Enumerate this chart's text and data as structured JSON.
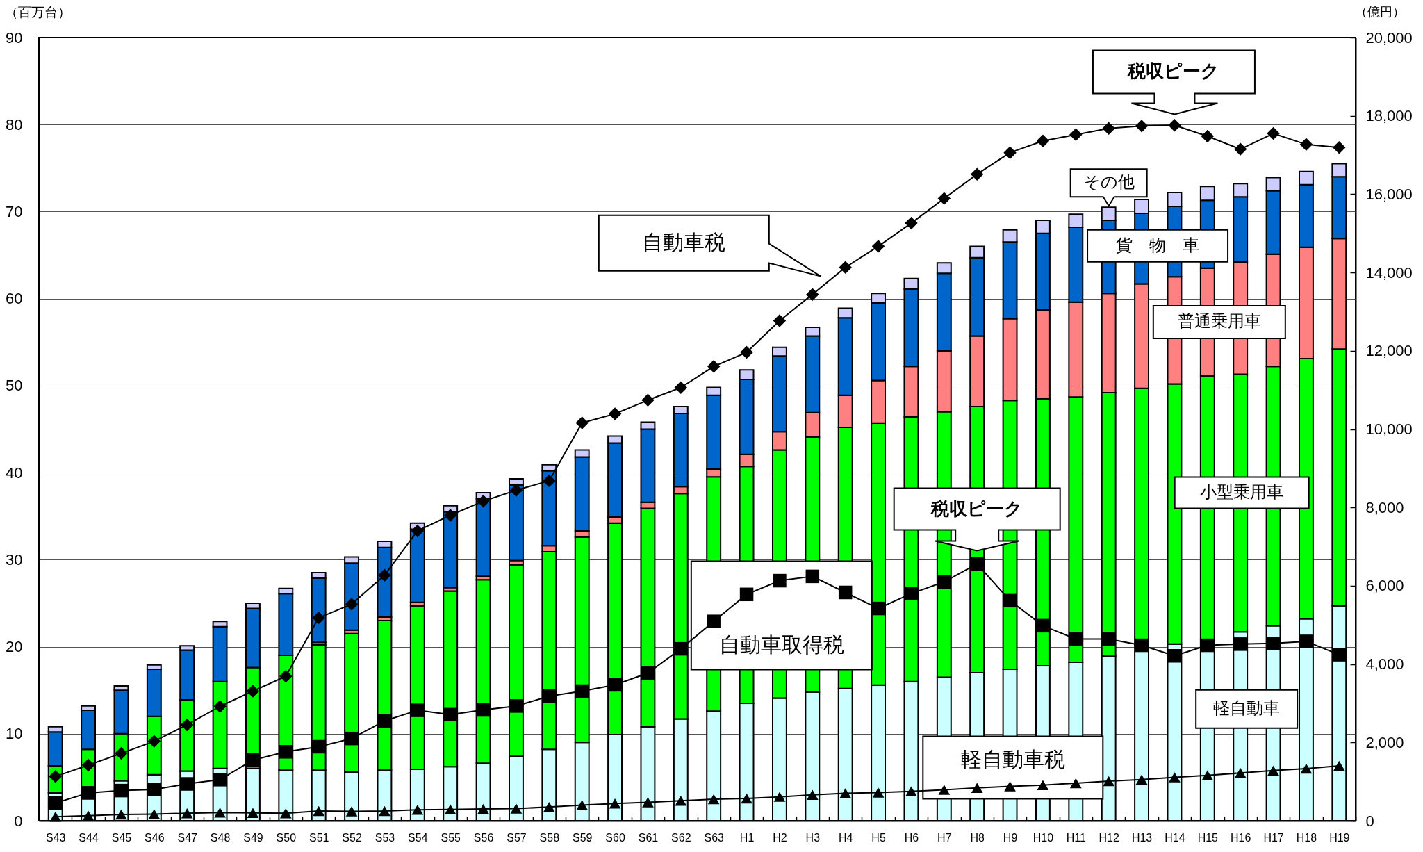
{
  "chart_data": {
    "type": "bar",
    "stacked": true,
    "ylabel": "（百万台）",
    "y2label": "（億円）",
    "legend": false,
    "grid": "y",
    "categories": [
      "S43",
      "S44",
      "S45",
      "S46",
      "S47",
      "S48",
      "S49",
      "S50",
      "S51",
      "S52",
      "S53",
      "S54",
      "S55",
      "S56",
      "S57",
      "S58",
      "S59",
      "S60",
      "S61",
      "S62",
      "S63",
      "H1",
      "H2",
      "H3",
      "H4",
      "H5",
      "H6",
      "H7",
      "H8",
      "H9",
      "H10",
      "H11",
      "H12",
      "H13",
      "H14",
      "H15",
      "H16",
      "H17",
      "H18",
      "H19"
    ],
    "ylim": [
      0,
      90
    ],
    "yticks": [
      0,
      10,
      20,
      30,
      40,
      50,
      60,
      70,
      80,
      90
    ],
    "y2lim": [
      0,
      20000
    ],
    "y2ticks": [
      0,
      {
        "value": 2000,
        "label": "2,000"
      },
      {
        "value": 4000,
        "label": "4,000"
      },
      {
        "value": 6000,
        "label": "6,000"
      },
      {
        "value": 8000,
        "label": "8,000"
      },
      {
        "value": 10000,
        "label": "10,000"
      },
      {
        "value": 12000,
        "label": "12,000"
      },
      {
        "value": 14000,
        "label": "14,000"
      },
      {
        "value": 16000,
        "label": "16,000"
      },
      {
        "value": 18000,
        "label": "18,000"
      },
      {
        "value": 20000,
        "label": "20,000"
      }
    ],
    "series": [
      {
        "name": "軽自動車",
        "color": "#ccffff",
        "values": [
          3.2,
          3.9,
          4.6,
          5.3,
          5.7,
          6.0,
          6.0,
          5.8,
          5.8,
          5.6,
          5.8,
          5.9,
          6.2,
          6.6,
          7.4,
          8.2,
          9.0,
          9.9,
          10.8,
          11.7,
          12.6,
          13.5,
          14.1,
          14.8,
          15.2,
          15.6,
          16.0,
          16.5,
          17.0,
          17.4,
          17.8,
          18.2,
          18.9,
          20.2,
          20.3,
          20.8,
          21.7,
          22.4,
          23.2,
          24.7
        ]
      },
      {
        "name": "小型乗用車",
        "color": "#00ff00",
        "values": [
          3.1,
          4.3,
          5.4,
          6.7,
          8.2,
          10.0,
          11.6,
          13.2,
          14.4,
          15.9,
          17.2,
          18.8,
          20.2,
          21.1,
          22.0,
          22.7,
          23.6,
          24.3,
          25.1,
          25.9,
          26.9,
          27.2,
          28.5,
          29.3,
          30.0,
          30.1,
          30.4,
          30.5,
          30.6,
          30.9,
          30.7,
          30.5,
          30.3,
          29.5,
          29.9,
          30.3,
          29.6,
          29.8,
          29.9,
          29.5
        ]
      },
      {
        "name": "普通乗用車",
        "color": "#ff8080",
        "values": [
          null,
          null,
          null,
          null,
          null,
          null,
          null,
          null,
          0.3,
          0.4,
          0.4,
          0.4,
          0.4,
          0.4,
          0.5,
          0.7,
          0.7,
          0.7,
          0.7,
          0.8,
          0.9,
          1.4,
          2.1,
          2.8,
          3.7,
          4.9,
          5.8,
          7.0,
          8.1,
          9.4,
          10.2,
          10.9,
          11.4,
          12.0,
          12.3,
          12.4,
          12.9,
          12.9,
          12.8,
          12.7
        ]
      },
      {
        "name": "貨　物　車",
        "color": "#0066cc",
        "values": [
          3.9,
          4.5,
          5.0,
          5.4,
          5.7,
          6.3,
          6.8,
          7.1,
          7.4,
          7.7,
          8.0,
          8.4,
          8.7,
          8.9,
          8.7,
          8.6,
          8.5,
          8.5,
          8.4,
          8.4,
          8.5,
          8.6,
          8.7,
          8.8,
          8.9,
          8.9,
          8.9,
          8.9,
          9.0,
          8.8,
          8.8,
          8.6,
          8.4,
          8.1,
          8.1,
          7.8,
          7.5,
          7.3,
          7.2,
          7.1
        ]
      },
      {
        "name": "その他",
        "color": "#ccccff",
        "values": [
          0.6,
          0.5,
          0.5,
          0.5,
          0.5,
          0.6,
          0.6,
          0.6,
          0.6,
          0.7,
          0.7,
          0.7,
          0.7,
          0.7,
          0.7,
          0.7,
          0.8,
          0.8,
          0.8,
          0.8,
          0.9,
          1.1,
          1.0,
          1.0,
          1.1,
          1.1,
          1.2,
          1.2,
          1.3,
          1.4,
          1.5,
          1.5,
          1.5,
          1.6,
          1.6,
          1.6,
          1.5,
          1.5,
          1.5,
          1.5
        ]
      },
      {
        "name": "自動車税",
        "type": "line",
        "axis": "y2",
        "color": "#000000",
        "marker": "diamond",
        "values": [
          1130,
          1420,
          1720,
          2030,
          2450,
          2920,
          3310,
          3690,
          5180,
          5530,
          6270,
          7400,
          7800,
          8160,
          8440,
          8680,
          10160,
          10390,
          10740,
          11060,
          11600,
          11960,
          12770,
          13440,
          14130,
          14670,
          15260,
          15890,
          16510,
          17060,
          17360,
          17520,
          17680,
          17740,
          17760,
          17480,
          17150,
          17550,
          17270,
          17190
        ]
      },
      {
        "name": "自動車取得税",
        "type": "line",
        "axis": "y2",
        "color": "#000000",
        "marker": "square",
        "values": [
          450,
          710,
          770,
          800,
          940,
          1050,
          1550,
          1760,
          1890,
          2100,
          2550,
          2820,
          2710,
          2830,
          2930,
          3180,
          3310,
          3470,
          3770,
          4390,
          5090,
          5780,
          6130,
          6240,
          5830,
          5420,
          5800,
          6100,
          6560,
          5620,
          4980,
          4640,
          4640,
          4480,
          4210,
          4480,
          4510,
          4530,
          4580,
          4240
        ]
      },
      {
        "name": "軽自動車税",
        "type": "line",
        "axis": "y2",
        "color": "#000000",
        "marker": "triangle",
        "values": [
          100,
          130,
          160,
          170,
          190,
          210,
          200,
          190,
          250,
          240,
          250,
          280,
          290,
          300,
          310,
          350,
          400,
          440,
          470,
          510,
          550,
          570,
          610,
          660,
          700,
          720,
          750,
          790,
          840,
          880,
          910,
          960,
          1010,
          1050,
          1110,
          1160,
          1220,
          1280,
          1330,
          1400
        ]
      }
    ],
    "annotations": [
      {
        "text": "税収ピーク",
        "x": "H14",
        "y": 79.9
      },
      {
        "text": "税収ピーク",
        "x": "H8",
        "y": 29.5
      }
    ]
  }
}
